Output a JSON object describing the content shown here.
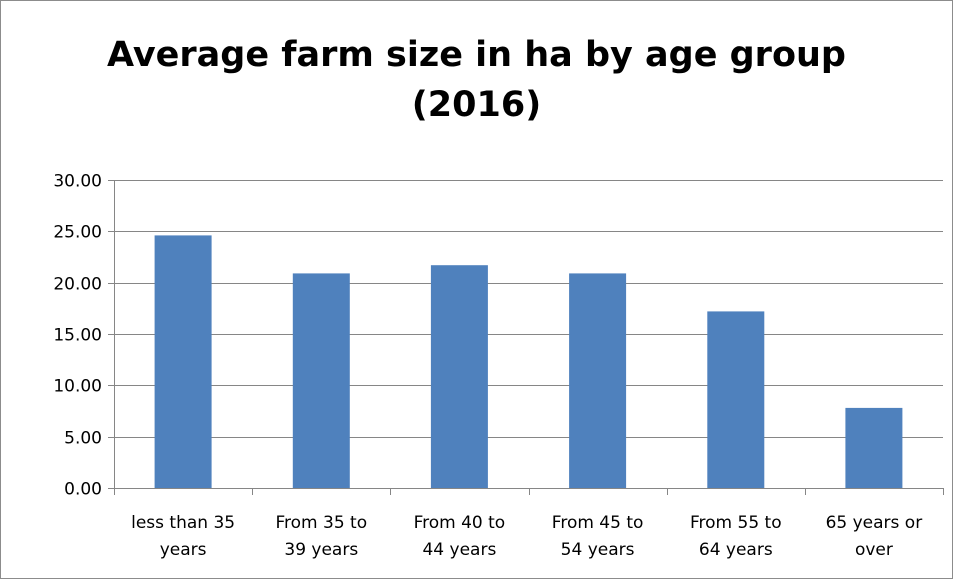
{
  "chart_data": {
    "type": "bar",
    "title_lines": [
      "Average farm size in ha by age group",
      "(2016)"
    ],
    "categories": [
      [
        "less than 35",
        "years"
      ],
      [
        "From 35 to",
        "39 years"
      ],
      [
        "From 40 to",
        "44 years"
      ],
      [
        "From 45 to",
        "54 years"
      ],
      [
        "From 55 to",
        "64 years"
      ],
      [
        "65 years or",
        "over"
      ]
    ],
    "values": [
      24.6,
      20.9,
      21.7,
      20.9,
      17.2,
      7.8
    ],
    "ylim": [
      0,
      30
    ],
    "yticks": [
      "0.00",
      "5.00",
      "10.00",
      "15.00",
      "20.00",
      "25.00",
      "30.00"
    ],
    "xlabel": "",
    "ylabel": "",
    "grid": true,
    "legend": "none",
    "colors": {
      "bar": "#4f81bd",
      "grid": "#868686",
      "axis": "#868686"
    }
  }
}
